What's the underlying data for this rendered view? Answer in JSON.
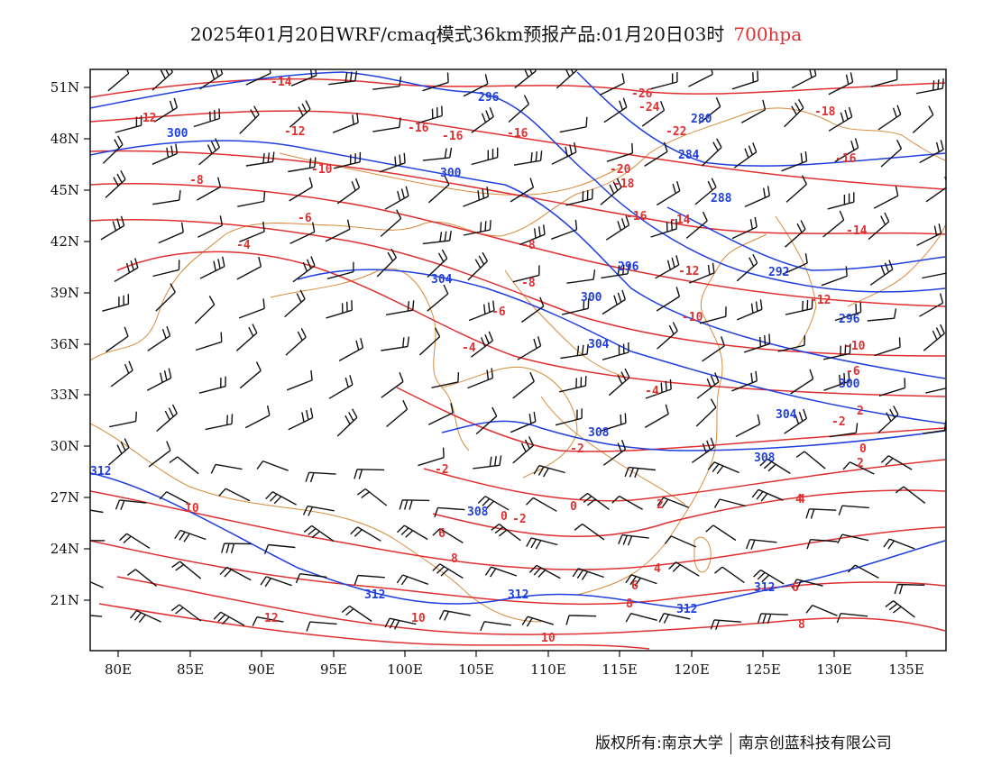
{
  "header": {
    "title": "2025年01月20日WRF/cmaq模式36km预报产品:01月20日03时",
    "level": "700hpa"
  },
  "axes": {
    "lat_labels": [
      "51N",
      "48N",
      "45N",
      "42N",
      "39N",
      "36N",
      "33N",
      "30N",
      "27N",
      "24N",
      "21N"
    ],
    "lon_labels": [
      "80E",
      "85E",
      "90E",
      "95E",
      "100E",
      "105E",
      "110E",
      "115E",
      "120E",
      "125E",
      "130E",
      "135E"
    ]
  },
  "colors": {
    "temperature": "#e03030",
    "height": "#1f3fe0",
    "boundary": "#d88a3a",
    "wind": "#111111"
  },
  "temperature_labels": [
    "-14",
    "-12",
    "-10",
    "-8",
    "-6",
    "-4",
    "-12",
    "-16",
    "-16",
    "-16",
    "-26",
    "-24",
    "-22",
    "-20",
    "-18",
    "-16",
    "-14",
    "-12",
    "-10",
    "-18",
    "-16",
    "-14",
    "-12",
    "-10",
    "-8",
    "-6",
    "-4",
    "-2",
    "0",
    "2",
    "4",
    "6",
    "8",
    "10",
    "12",
    "-2",
    "-2",
    "0",
    "2",
    "4",
    "6",
    "8",
    "10",
    "-8",
    "-6",
    "-4",
    "-2",
    "0",
    "2",
    "4",
    "6",
    "8",
    "10"
  ],
  "height_labels": [
    "296",
    "300",
    "300",
    "304",
    "300",
    "304",
    "308",
    "308",
    "312",
    "312",
    "312",
    "312",
    "296",
    "288",
    "284",
    "280",
    "292",
    "296",
    "300",
    "304",
    "308",
    "312"
  ],
  "footer": {
    "copyright": "版权所有:南京大学",
    "company": "南京创蓝科技有限公司"
  }
}
